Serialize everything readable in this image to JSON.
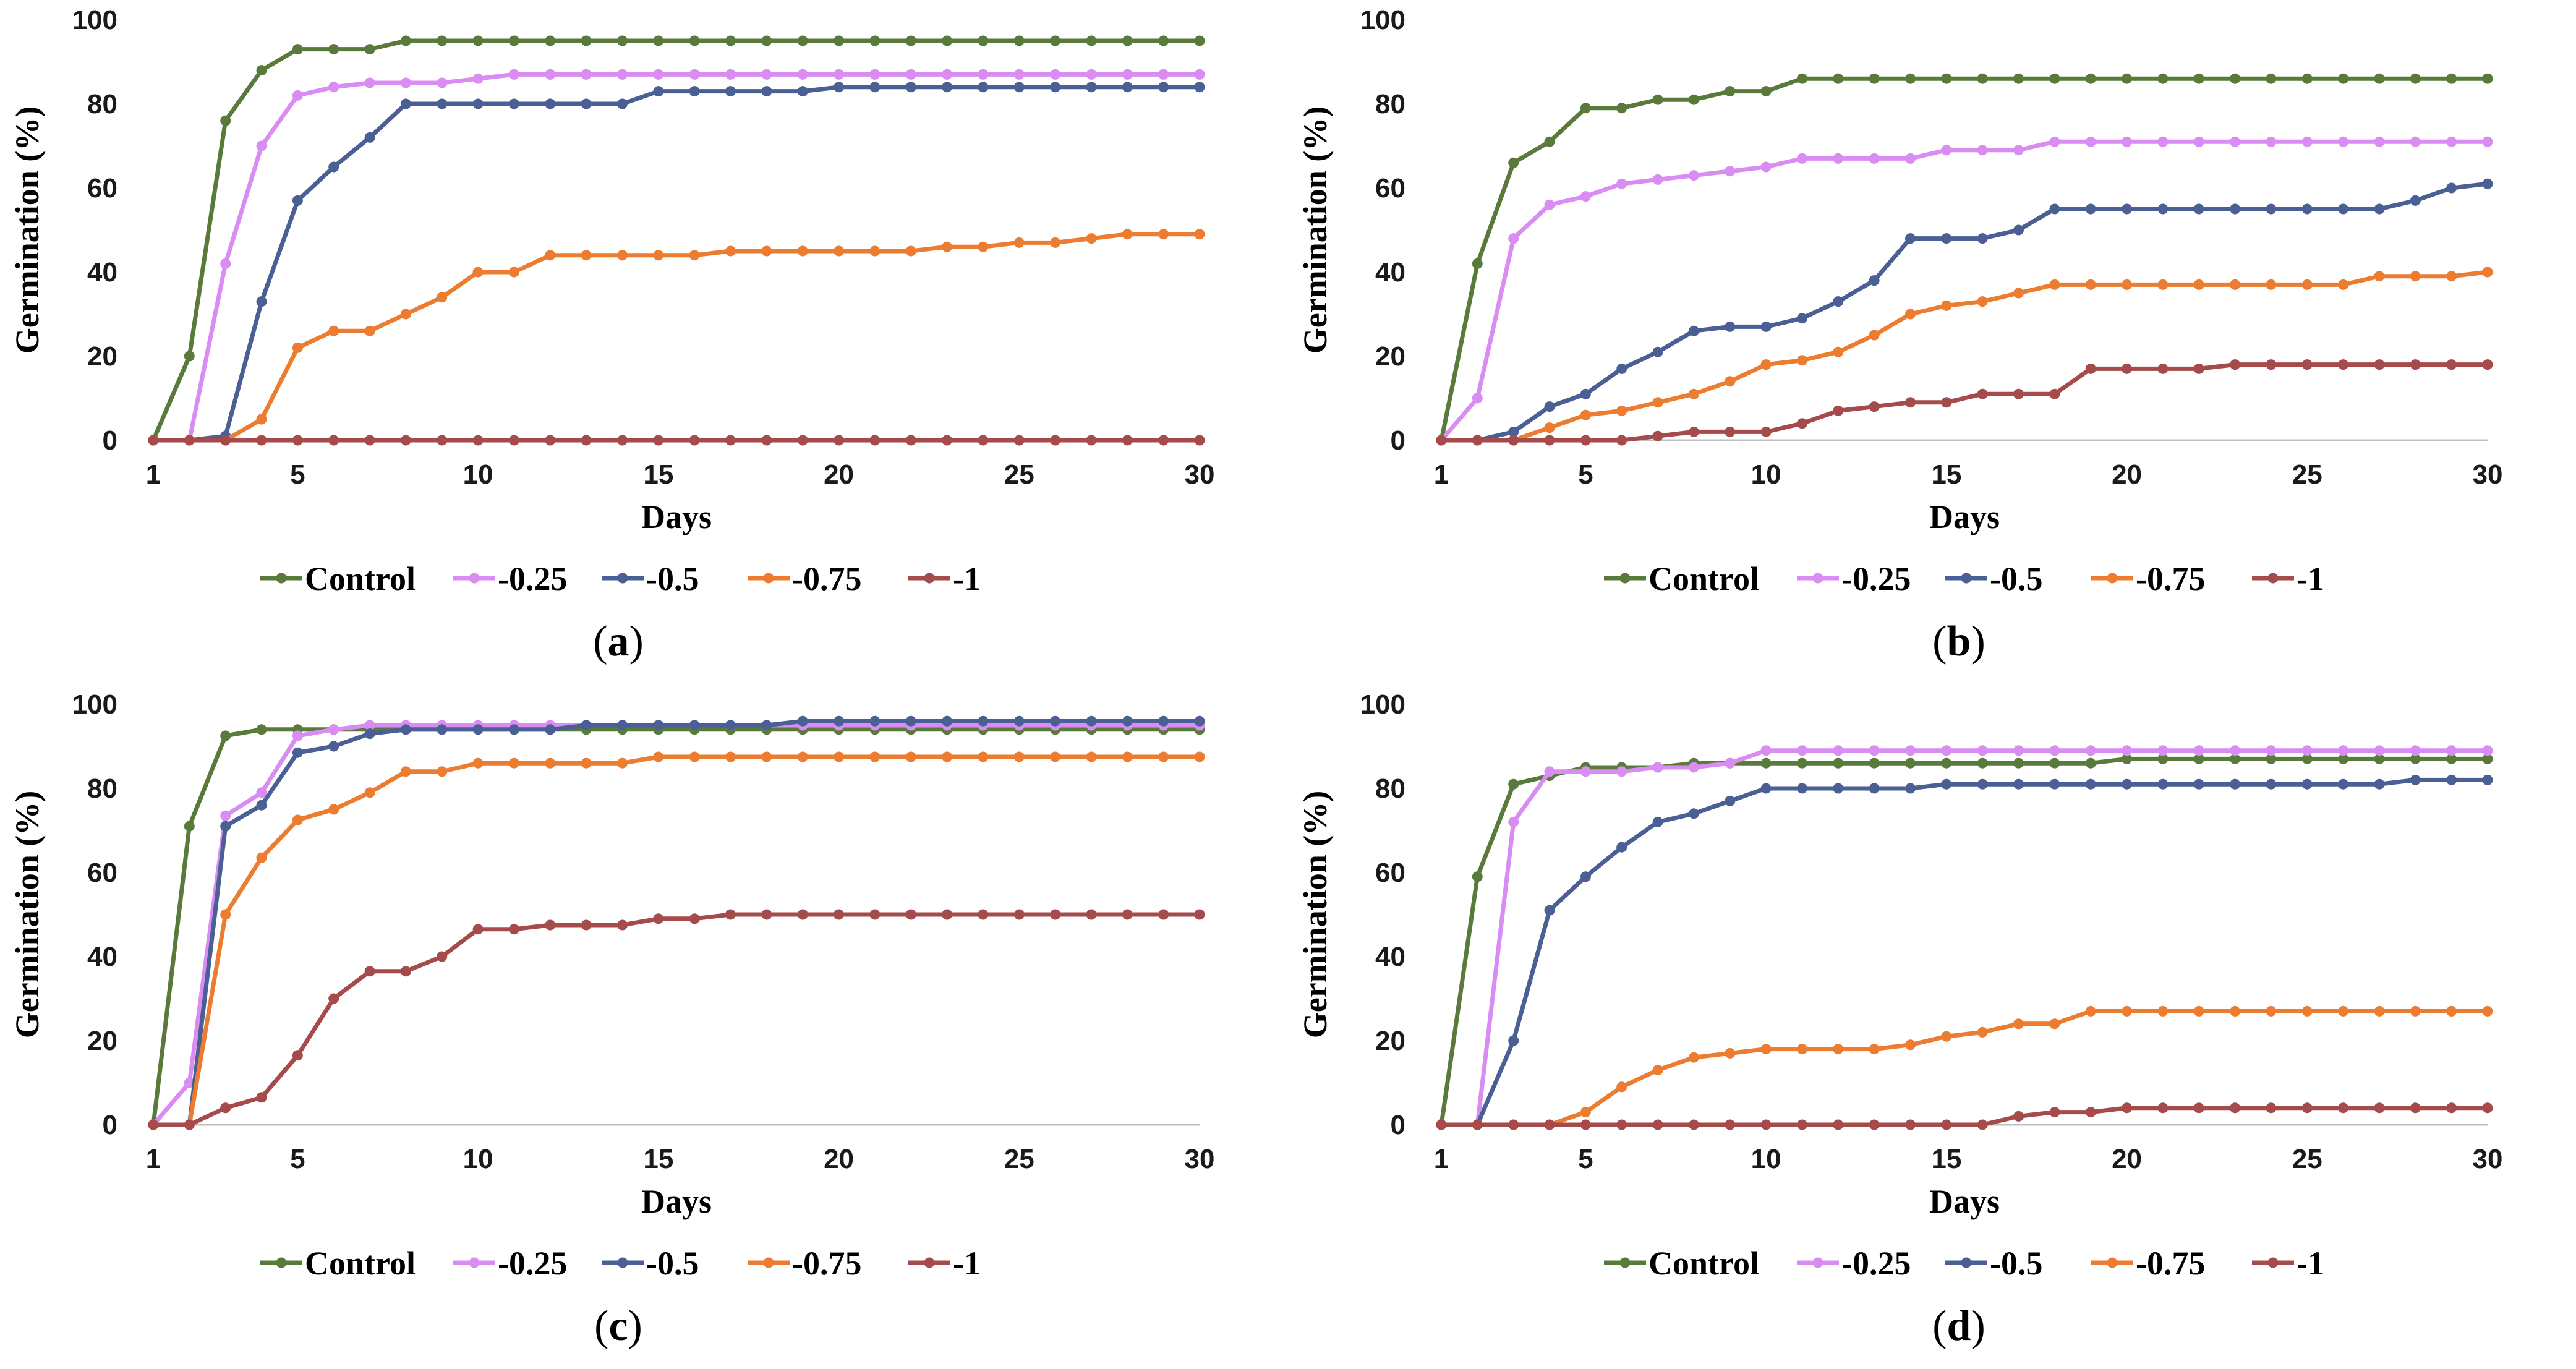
{
  "chart_data": [
    {
      "type": "line",
      "panel": "a",
      "caption_letter": "a",
      "xlabel": "Days",
      "ylabel": "Germination (%)",
      "ylim": [
        0,
        100
      ],
      "yticks": [
        0,
        20,
        40,
        60,
        80,
        100
      ],
      "xlim": [
        1,
        30
      ],
      "xticks": [
        1,
        5,
        10,
        15,
        20,
        25,
        30
      ],
      "x": [
        1,
        2,
        3,
        4,
        5,
        6,
        7,
        8,
        9,
        10,
        11,
        12,
        13,
        14,
        15,
        16,
        17,
        18,
        19,
        20,
        21,
        22,
        23,
        24,
        25,
        26,
        27,
        28,
        29,
        30
      ],
      "series": [
        {
          "name": "Control",
          "color": "#5a7a3c",
          "values": [
            0,
            20,
            76,
            88,
            93,
            93,
            93,
            95,
            95,
            95,
            95,
            95,
            95,
            95,
            95,
            95,
            95,
            95,
            95,
            95,
            95,
            95,
            95,
            95,
            95,
            95,
            95,
            95,
            95,
            95
          ]
        },
        {
          "name": "-0.25",
          "color": "#d98cf2",
          "values": [
            0,
            0,
            42,
            70,
            82,
            84,
            85,
            85,
            85,
            86,
            87,
            87,
            87,
            87,
            87,
            87,
            87,
            87,
            87,
            87,
            87,
            87,
            87,
            87,
            87,
            87,
            87,
            87,
            87,
            87
          ]
        },
        {
          "name": "-0.5",
          "color": "#4a5f94",
          "values": [
            0,
            0,
            1,
            33,
            57,
            65,
            72,
            80,
            80,
            80,
            80,
            80,
            80,
            80,
            83,
            83,
            83,
            83,
            83,
            84,
            84,
            84,
            84,
            84,
            84,
            84,
            84,
            84,
            84,
            84
          ]
        },
        {
          "name": "-0.75",
          "color": "#ec7c30",
          "values": [
            0,
            0,
            0,
            5,
            22,
            26,
            26,
            30,
            34,
            40,
            40,
            44,
            44,
            44,
            44,
            44,
            45,
            45,
            45,
            45,
            45,
            45,
            46,
            46,
            47,
            47,
            48,
            49,
            49,
            49
          ]
        },
        {
          "name": "-1",
          "color": "#a64b4b",
          "values": [
            0,
            0,
            0,
            0,
            0,
            0,
            0,
            0,
            0,
            0,
            0,
            0,
            0,
            0,
            0,
            0,
            0,
            0,
            0,
            0,
            0,
            0,
            0,
            0,
            0,
            0,
            0,
            0,
            0,
            0
          ]
        }
      ]
    },
    {
      "type": "line",
      "panel": "b",
      "caption_letter": "b",
      "xlabel": "Days",
      "ylabel": "Germination (%)",
      "ylim": [
        0,
        100
      ],
      "yticks": [
        0,
        20,
        40,
        60,
        80,
        100
      ],
      "xlim": [
        1,
        30
      ],
      "xticks": [
        1,
        5,
        10,
        15,
        20,
        25,
        30
      ],
      "x": [
        1,
        2,
        3,
        4,
        5,
        6,
        7,
        8,
        9,
        10,
        11,
        12,
        13,
        14,
        15,
        16,
        17,
        18,
        19,
        20,
        21,
        22,
        23,
        24,
        25,
        26,
        27,
        28,
        29,
        30
      ],
      "series": [
        {
          "name": "Control",
          "color": "#5a7a3c",
          "values": [
            0,
            42,
            66,
            71,
            79,
            79,
            81,
            81,
            83,
            83,
            86,
            86,
            86,
            86,
            86,
            86,
            86,
            86,
            86,
            86,
            86,
            86,
            86,
            86,
            86,
            86,
            86,
            86,
            86,
            86
          ]
        },
        {
          "name": "-0.25",
          "color": "#d98cf2",
          "values": [
            0,
            10,
            48,
            56,
            58,
            61,
            62,
            63,
            64,
            65,
            67,
            67,
            67,
            67,
            69,
            69,
            69,
            71,
            71,
            71,
            71,
            71,
            71,
            71,
            71,
            71,
            71,
            71,
            71,
            71
          ]
        },
        {
          "name": "-0.5",
          "color": "#4a5f94",
          "values": [
            0,
            0,
            2,
            8,
            11,
            17,
            21,
            26,
            27,
            27,
            29,
            33,
            38,
            48,
            48,
            48,
            50,
            55,
            55,
            55,
            55,
            55,
            55,
            55,
            55,
            55,
            55,
            57,
            60,
            61
          ]
        },
        {
          "name": "-0.75",
          "color": "#ec7c30",
          "values": [
            0,
            0,
            0,
            3,
            6,
            7,
            9,
            11,
            14,
            18,
            19,
            21,
            25,
            30,
            32,
            33,
            35,
            37,
            37,
            37,
            37,
            37,
            37,
            37,
            37,
            37,
            39,
            39,
            39,
            40
          ]
        },
        {
          "name": "-1",
          "color": "#a64b4b",
          "values": [
            0,
            0,
            0,
            0,
            0,
            0,
            1,
            2,
            2,
            2,
            4,
            7,
            8,
            9,
            9,
            11,
            11,
            11,
            17,
            17,
            17,
            17,
            18,
            18,
            18,
            18,
            18,
            18,
            18,
            18
          ]
        }
      ]
    },
    {
      "type": "line",
      "panel": "c",
      "caption_letter": "c",
      "xlabel": "Days",
      "ylabel": "Germination (%)",
      "ylim": [
        0,
        100
      ],
      "yticks": [
        0,
        20,
        40,
        60,
        80,
        100
      ],
      "xlim": [
        1,
        30
      ],
      "xticks": [
        1,
        5,
        10,
        15,
        20,
        25,
        30
      ],
      "x": [
        1,
        2,
        3,
        4,
        5,
        6,
        7,
        8,
        9,
        10,
        11,
        12,
        13,
        14,
        15,
        16,
        17,
        18,
        19,
        20,
        21,
        22,
        23,
        24,
        25,
        26,
        27,
        28,
        29,
        30
      ],
      "series": [
        {
          "name": "Control",
          "color": "#5a7a3c",
          "values": [
            0,
            71,
            92.5,
            94,
            94,
            94,
            94,
            94,
            94,
            94,
            94,
            94,
            94,
            94,
            94,
            94,
            94,
            94,
            94,
            94,
            94,
            94,
            94,
            94,
            94,
            94,
            94,
            94,
            94,
            94
          ]
        },
        {
          "name": "-0.25",
          "color": "#d98cf2",
          "values": [
            0,
            10,
            73.5,
            79,
            92.5,
            94,
            95,
            95,
            95,
            95,
            95,
            95,
            95,
            95,
            95,
            95,
            95,
            95,
            95,
            95,
            95,
            95,
            95,
            95,
            95,
            95,
            95,
            95,
            95,
            95
          ]
        },
        {
          "name": "-0.5",
          "color": "#4a5f94",
          "values": [
            0,
            0,
            71,
            76,
            88.5,
            90,
            93,
            94,
            94,
            94,
            94,
            94,
            95,
            95,
            95,
            95,
            95,
            95,
            96,
            96,
            96,
            96,
            96,
            96,
            96,
            96,
            96,
            96,
            96,
            96
          ]
        },
        {
          "name": "-0.75",
          "color": "#ec7c30",
          "values": [
            0,
            0,
            50,
            63.5,
            72.5,
            75,
            79,
            84,
            84,
            86,
            86,
            86,
            86,
            86,
            87.5,
            87.5,
            87.5,
            87.5,
            87.5,
            87.5,
            87.5,
            87.5,
            87.5,
            87.5,
            87.5,
            87.5,
            87.5,
            87.5,
            87.5,
            87.5
          ]
        },
        {
          "name": "-1",
          "color": "#a64b4b",
          "values": [
            0,
            0,
            4,
            6.5,
            16.5,
            30,
            36.5,
            36.5,
            40,
            46.5,
            46.5,
            47.5,
            47.5,
            47.5,
            49,
            49,
            50,
            50,
            50,
            50,
            50,
            50,
            50,
            50,
            50,
            50,
            50,
            50,
            50,
            50
          ]
        }
      ]
    },
    {
      "type": "line",
      "panel": "d",
      "caption_letter": "d",
      "xlabel": "Days",
      "ylabel": "Germination (%)",
      "ylim": [
        0,
        100
      ],
      "yticks": [
        0,
        20,
        40,
        60,
        80,
        100
      ],
      "xlim": [
        1,
        30
      ],
      "xticks": [
        1,
        5,
        10,
        15,
        20,
        25,
        30
      ],
      "x": [
        1,
        2,
        3,
        4,
        5,
        6,
        7,
        8,
        9,
        10,
        11,
        12,
        13,
        14,
        15,
        16,
        17,
        18,
        19,
        20,
        21,
        22,
        23,
        24,
        25,
        26,
        27,
        28,
        29,
        30
      ],
      "series": [
        {
          "name": "Control",
          "color": "#5a7a3c",
          "values": [
            0,
            59,
            81,
            83,
            85,
            85,
            85,
            86,
            86,
            86,
            86,
            86,
            86,
            86,
            86,
            86,
            86,
            86,
            86,
            87,
            87,
            87,
            87,
            87,
            87,
            87,
            87,
            87,
            87,
            87
          ]
        },
        {
          "name": "-0.25",
          "color": "#d98cf2",
          "values": [
            0,
            0,
            72,
            84,
            84,
            84,
            85,
            85,
            86,
            89,
            89,
            89,
            89,
            89,
            89,
            89,
            89,
            89,
            89,
            89,
            89,
            89,
            89,
            89,
            89,
            89,
            89,
            89,
            89,
            89
          ]
        },
        {
          "name": "-0.5",
          "color": "#4a5f94",
          "values": [
            0,
            0,
            20,
            51,
            59,
            66,
            72,
            74,
            77,
            80,
            80,
            80,
            80,
            80,
            81,
            81,
            81,
            81,
            81,
            81,
            81,
            81,
            81,
            81,
            81,
            81,
            81,
            82,
            82,
            82
          ]
        },
        {
          "name": "-0.75",
          "color": "#ec7c30",
          "values": [
            0,
            0,
            0,
            0,
            3,
            9,
            13,
            16,
            17,
            18,
            18,
            18,
            18,
            19,
            21,
            22,
            24,
            24,
            27,
            27,
            27,
            27,
            27,
            27,
            27,
            27,
            27,
            27,
            27,
            27
          ]
        },
        {
          "name": "-1",
          "color": "#a64b4b",
          "values": [
            0,
            0,
            0,
            0,
            0,
            0,
            0,
            0,
            0,
            0,
            0,
            0,
            0,
            0,
            0,
            0,
            2,
            3,
            3,
            4,
            4,
            4,
            4,
            4,
            4,
            4,
            4,
            4,
            4,
            4
          ]
        }
      ]
    }
  ]
}
